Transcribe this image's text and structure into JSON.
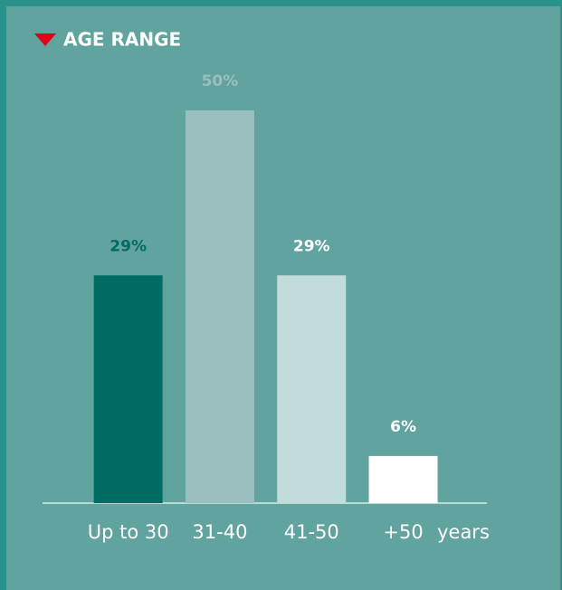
{
  "chart_data": {
    "type": "bar",
    "title": "AGE RANGE",
    "categories": [
      "Up to 30",
      "31-40",
      "41-50",
      "+50"
    ],
    "values": [
      29,
      50,
      29,
      6
    ],
    "value_labels": [
      "29%",
      "50%",
      "29%",
      "6%"
    ],
    "colors": [
      "#006d65",
      "#9bbfbf",
      "#c2dcdc",
      "#ffffff"
    ],
    "value_label_colors": [
      "#006d65",
      "#9bbfbf",
      "#ffffff",
      "#ffffff"
    ],
    "x_axis_unit": "years"
  }
}
